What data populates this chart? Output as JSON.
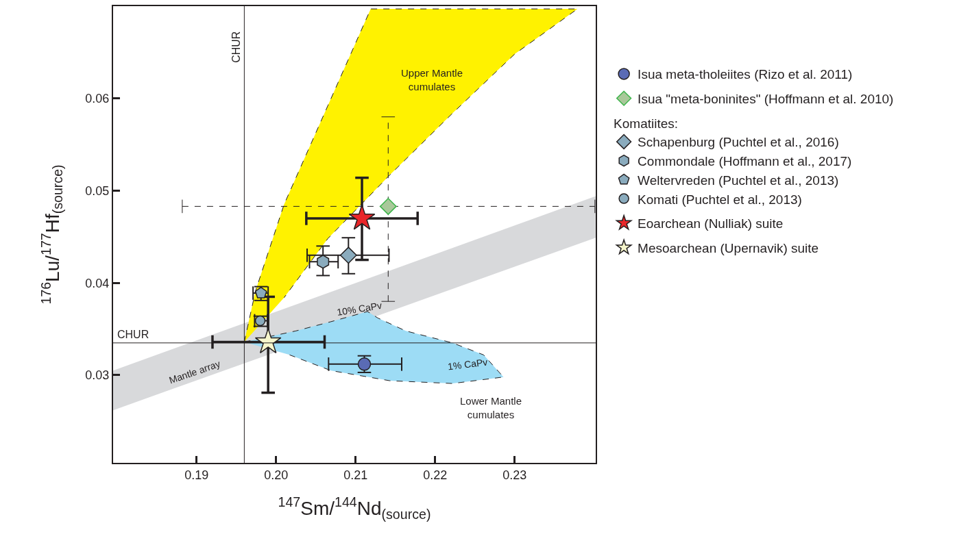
{
  "chart_data": {
    "type": "scatter",
    "xlabel": "$^{147}$Sm/$^{144}$Nd$_{(source)}$",
    "ylabel": "$^{176}$Lu/$^{177}$Hf$_{(source)}$",
    "xlim": [
      0.1795,
      0.2402
    ],
    "ylim": [
      0.0205,
      0.07
    ],
    "xticks": [
      0.19,
      {
        "value": 0.2,
        "label": "0.20"
      },
      0.21,
      0.22,
      0.23
    ],
    "yticks": [
      0.03,
      0.04,
      0.05,
      0.06
    ],
    "legend": "right",
    "ref_lines": [
      {
        "axis": "x",
        "value": 0.196,
        "label": "CHUR",
        "color": "#231f20"
      },
      {
        "axis": "y",
        "value": 0.0335,
        "label": "CHUR",
        "color": "#231f20"
      }
    ],
    "annotations": [
      "Upper Mantle\ncumulates",
      "Lower Mantle\ncumulates",
      "Mantle array",
      "10% CaPv",
      "1% CaPv",
      "Komatiites:"
    ],
    "series": [
      {
        "type": "area",
        "color": "#d8d9db",
        "x": [
          0.1795,
          0.2402,
          0.2402,
          0.1795
        ],
        "values": [
          0.0305,
          0.0494,
          0.0449,
          0.0262
        ]
      },
      {
        "type": "area",
        "color": "#fff200",
        "line_style": "dashed",
        "x": [
          0.196,
          0.1974,
          0.201,
          0.2065,
          0.2119,
          0.2379,
          0.23,
          0.2222,
          0.2143,
          0.2065,
          0.201
        ],
        "values": [
          0.0336,
          0.0391,
          0.0485,
          0.0592,
          0.0697,
          0.0697,
          0.0648,
          0.0584,
          0.0517,
          0.0448,
          0.0384
        ]
      },
      {
        "type": "area",
        "color": "#9ddcf5",
        "line_style": "dashed",
        "x": [
          0.196,
          0.2025,
          0.2069,
          0.2115,
          0.2128,
          0.2163,
          0.2222,
          0.2261,
          0.2286,
          0.2222,
          0.2143,
          0.2069,
          0.2017
        ],
        "values": [
          0.0336,
          0.0348,
          0.0358,
          0.0369,
          0.0362,
          0.0348,
          0.0335,
          0.0322,
          0.0298,
          0.0291,
          0.0294,
          0.0305,
          0.0322
        ]
      },
      {
        "name": "Isua meta-tholeiites (Rizo et al. 2011)",
        "marker": "circle",
        "color": "#5a6bb5",
        "x": [
          0.2111
        ],
        "values": [
          0.0312
        ],
        "errors": [
          [
            0.0303,
            0.0321
          ]
        ],
        "xerrors": [
          [
            0.2066,
            0.2158
          ]
        ]
      },
      {
        "name": "Isua \"meta-boninites\" (Hoffmann et al. 2010)",
        "marker": "diamond",
        "color": "#a9c89a",
        "line_style": "dashed",
        "x": [
          0.2141
        ],
        "values": [
          0.0483
        ],
        "errors": [
          [
            0.038,
            0.058
          ]
        ],
        "xerrors": [
          [
            0.1882,
            0.2401
          ]
        ]
      },
      {
        "name": "Schapenburg (Puchtel et al., 2016)",
        "marker": "diamond",
        "color": "#8aabbd",
        "x": [
          0.2091
        ],
        "values": [
          0.043
        ],
        "errors": [
          [
            0.041,
            0.0449
          ]
        ],
        "xerrors": [
          [
            0.2039,
            0.2142
          ]
        ]
      },
      {
        "name": "Commondale (Hoffmann et al., 2017)",
        "color": "#8aabbd",
        "x": [
          0.2059
        ],
        "values": [
          0.0423
        ],
        "errors": [
          [
            0.0408,
            0.044
          ]
        ],
        "xerrors": [
          [
            0.2042,
            0.2078
          ]
        ]
      },
      {
        "name": "Weltervreden (Puchtel et al., 2013)",
        "color": "#8aabbd",
        "x": [
          0.1981
        ],
        "values": [
          0.0389
        ],
        "errors": [
          [
            0.0381,
            0.0396
          ]
        ],
        "xerrors": [
          [
            0.1971,
            0.199
          ]
        ]
      },
      {
        "name": "Komati (Puchtel et al., 2013)",
        "marker": "circle",
        "color": "#8aabbd",
        "x": [
          0.198
        ],
        "values": [
          0.0359
        ],
        "errors": [
          [
            0.0353,
            0.0364
          ]
        ],
        "xerrors": [
          [
            0.1973,
            0.1989
          ]
        ]
      },
      {
        "name": "Eoarchean (Nulliak) suite",
        "marker": "star",
        "color": "#e8262a",
        "x": [
          0.2108
        ],
        "values": [
          0.047
        ],
        "errors": [
          [
            0.0425,
            0.0514
          ]
        ],
        "xerrors": [
          [
            0.2038,
            0.2178
          ]
        ]
      },
      {
        "name": "Mesoarchean (Upernavik) suite",
        "marker": "star",
        "color": "#f6f6cc",
        "x": [
          0.199
        ],
        "values": [
          0.0336
        ],
        "errors": [
          [
            0.0281,
            0.0385
          ]
        ],
        "xerrors": [
          [
            0.192,
            0.2061
          ]
        ]
      }
    ]
  }
}
